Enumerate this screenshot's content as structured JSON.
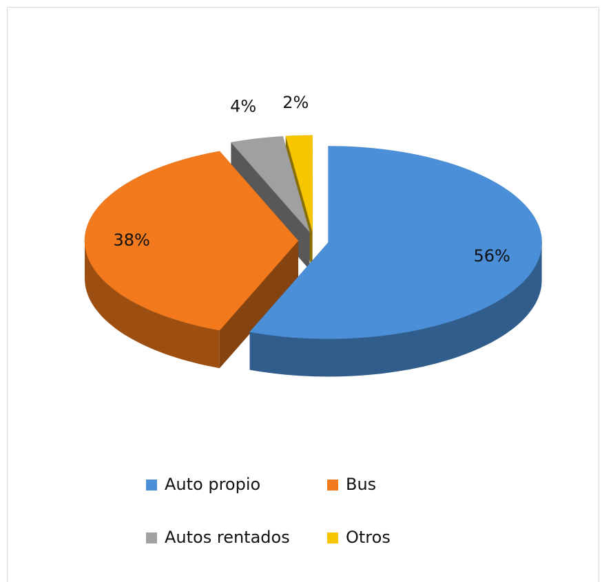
{
  "chart_data": {
    "type": "pie3d",
    "categories": [
      "Auto propio",
      "Bus",
      "Autos rentados",
      "Otros"
    ],
    "values": [
      56,
      38,
      4,
      2
    ],
    "value_labels": [
      "56%",
      "38%",
      "4%",
      "2%"
    ],
    "colors": [
      "#4a8fd8",
      "#f27a1c",
      "#a0a0a0",
      "#f7c600"
    ],
    "legend": "bottom"
  }
}
